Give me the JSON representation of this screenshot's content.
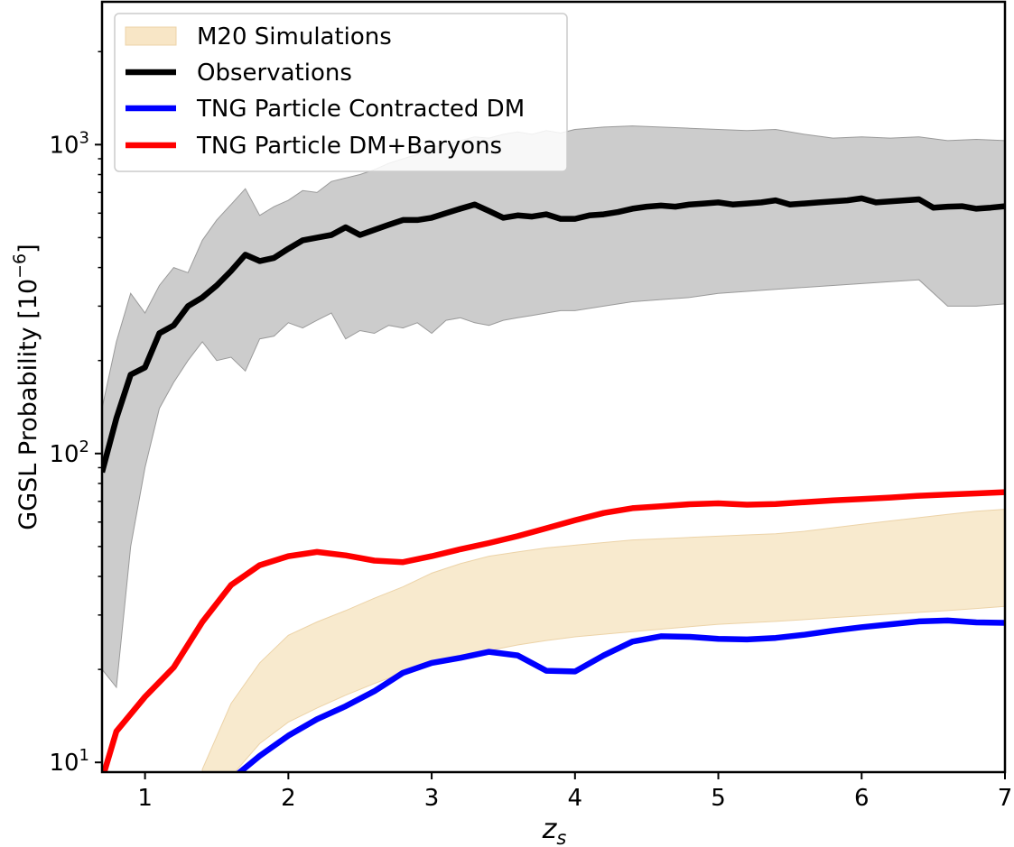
{
  "chart_data": {
    "type": "line",
    "xlabel_base": "z",
    "xlabel_sub": "s",
    "ylabel": "GGSL Probability [10",
    "ylabel_exp": "−6",
    "ylabel_close": "]",
    "yscale": "log",
    "xlim": [
      0.7,
      7.0
    ],
    "ylim": [
      9.3,
      2900
    ],
    "xticks": [
      1,
      2,
      3,
      4,
      5,
      6,
      7
    ],
    "xtick_labels": [
      "1",
      "2",
      "3",
      "4",
      "5",
      "6",
      "7"
    ],
    "yticks": [
      10,
      100,
      1000
    ],
    "ytick_labels": [
      {
        "base": "10",
        "exp": "1"
      },
      {
        "base": "10",
        "exp": "2"
      },
      {
        "base": "10",
        "exp": "3"
      }
    ],
    "legend": {
      "position": "top-left",
      "entries": [
        {
          "label": "M20 Simulations",
          "kind": "band",
          "color": "#f5deb3"
        },
        {
          "label": "Observations",
          "kind": "line",
          "color": "#000000"
        },
        {
          "label": "TNG Particle Contracted DM",
          "kind": "line",
          "color": "#0000ff"
        },
        {
          "label": "TNG Particle DM+Baryons",
          "kind": "line",
          "color": "#ff0000"
        }
      ]
    },
    "bands": [
      {
        "name": "M20 Simulations",
        "color": "#f5deb3",
        "x": [
          1.4,
          1.6,
          1.8,
          2.0,
          2.2,
          2.4,
          2.6,
          2.8,
          3.0,
          3.2,
          3.4,
          3.6,
          3.8,
          4.0,
          4.2,
          4.4,
          4.6,
          4.8,
          5.0,
          5.2,
          5.4,
          5.6,
          5.8,
          6.0,
          6.2,
          6.4,
          6.6,
          6.8,
          7.0
        ],
        "upper": [
          9.5,
          15.5,
          21.0,
          25.8,
          28.5,
          31.0,
          34.0,
          37.0,
          41.0,
          44.0,
          46.5,
          48.0,
          49.5,
          50.5,
          51.5,
          52.5,
          53.0,
          53.5,
          54.0,
          54.5,
          55.0,
          56.0,
          57.5,
          59.0,
          60.5,
          62.0,
          63.5,
          65.0,
          66.0
        ],
        "lower": [
          null,
          9.0,
          11.5,
          13.5,
          15.0,
          16.5,
          18.0,
          19.5,
          21.0,
          22.0,
          23.0,
          24.0,
          24.8,
          25.5,
          26.0,
          26.5,
          27.0,
          27.5,
          28.0,
          28.3,
          28.6,
          29.0,
          29.4,
          29.8,
          30.2,
          30.6,
          31.0,
          31.5,
          32.0
        ]
      },
      {
        "name": "Observations uncertainty",
        "color": "#bfbfbf",
        "x": [
          0.7,
          0.8,
          0.9,
          1.0,
          1.1,
          1.2,
          1.3,
          1.4,
          1.5,
          1.6,
          1.7,
          1.8,
          1.9,
          2.0,
          2.1,
          2.2,
          2.3,
          2.4,
          2.5,
          2.6,
          2.7,
          2.8,
          2.9,
          3.0,
          3.1,
          3.2,
          3.3,
          3.4,
          3.5,
          3.6,
          3.7,
          3.8,
          3.9,
          4.0,
          4.2,
          4.4,
          4.6,
          4.8,
          5.0,
          5.2,
          5.4,
          5.6,
          5.8,
          6.0,
          6.2,
          6.4,
          6.6,
          6.8,
          7.0
        ],
        "upper": [
          140,
          230,
          330,
          285,
          350,
          400,
          385,
          490,
          570,
          640,
          720,
          590,
          630,
          660,
          710,
          700,
          760,
          780,
          800,
          830,
          870,
          900,
          930,
          980,
          1000,
          1030,
          1060,
          1050,
          1080,
          1100,
          1080,
          1110,
          1090,
          1120,
          1140,
          1150,
          1140,
          1130,
          1120,
          1110,
          1120,
          1080,
          1050,
          1060,
          1050,
          1060,
          1030,
          1040,
          1030
        ],
        "lower": [
          20,
          17.5,
          50,
          90,
          140,
          170,
          200,
          230,
          200,
          205,
          185,
          235,
          240,
          265,
          255,
          270,
          285,
          235,
          250,
          245,
          260,
          255,
          265,
          245,
          270,
          275,
          265,
          260,
          270,
          275,
          280,
          285,
          290,
          290,
          300,
          310,
          315,
          320,
          330,
          335,
          340,
          345,
          350,
          355,
          360,
          365,
          300,
          300,
          305
        ]
      }
    ],
    "series": [
      {
        "name": "Observations",
        "color": "#000000",
        "x": [
          0.7,
          0.8,
          0.9,
          1.0,
          1.1,
          1.2,
          1.3,
          1.4,
          1.5,
          1.6,
          1.7,
          1.8,
          1.9,
          2.0,
          2.1,
          2.2,
          2.3,
          2.4,
          2.5,
          2.6,
          2.7,
          2.8,
          2.9,
          3.0,
          3.1,
          3.2,
          3.3,
          3.4,
          3.5,
          3.6,
          3.7,
          3.8,
          3.9,
          4.0,
          4.1,
          4.2,
          4.3,
          4.4,
          4.5,
          4.6,
          4.7,
          4.8,
          4.9,
          5.0,
          5.1,
          5.2,
          5.3,
          5.4,
          5.5,
          5.6,
          5.7,
          5.8,
          5.9,
          6.0,
          6.1,
          6.2,
          6.3,
          6.4,
          6.5,
          6.6,
          6.7,
          6.8,
          6.9,
          7.0
        ],
        "y": [
          87,
          130,
          180,
          190,
          245,
          260,
          300,
          320,
          350,
          390,
          440,
          420,
          430,
          460,
          490,
          500,
          510,
          540,
          510,
          530,
          550,
          570,
          570,
          580,
          600,
          620,
          640,
          610,
          580,
          590,
          585,
          595,
          575,
          575,
          590,
          595,
          605,
          620,
          630,
          635,
          630,
          640,
          645,
          650,
          640,
          645,
          650,
          660,
          640,
          645,
          650,
          655,
          660,
          670,
          650,
          655,
          660,
          665,
          625,
          630,
          632,
          620,
          625,
          632
        ]
      },
      {
        "name": "TNG Particle Contracted DM",
        "color": "#0000ff",
        "x": [
          1.65,
          1.8,
          2.0,
          2.2,
          2.4,
          2.6,
          2.8,
          3.0,
          3.2,
          3.4,
          3.6,
          3.8,
          4.0,
          4.2,
          4.4,
          4.6,
          4.8,
          5.0,
          5.2,
          5.4,
          5.6,
          5.8,
          6.0,
          6.2,
          6.4,
          6.6,
          6.8,
          7.0
        ],
        "y": [
          9.2,
          10.5,
          12.2,
          13.8,
          15.2,
          17.0,
          19.5,
          21.0,
          21.8,
          22.8,
          22.2,
          19.8,
          19.7,
          22.2,
          24.6,
          25.6,
          25.5,
          25.1,
          25.0,
          25.3,
          25.9,
          26.7,
          27.4,
          28.0,
          28.6,
          28.8,
          28.4,
          28.3
        ]
      },
      {
        "name": "TNG Particle DM+Baryons",
        "color": "#ff0000",
        "x": [
          0.7,
          0.8,
          1.0,
          1.2,
          1.4,
          1.6,
          1.8,
          2.0,
          2.2,
          2.4,
          2.6,
          2.8,
          3.0,
          3.2,
          3.4,
          3.6,
          3.8,
          4.0,
          4.2,
          4.4,
          4.6,
          4.8,
          5.0,
          5.2,
          5.4,
          5.6,
          5.8,
          6.0,
          6.2,
          6.4,
          6.6,
          6.8,
          7.0
        ],
        "y": [
          8.8,
          12.6,
          16.3,
          20.3,
          28.5,
          37.5,
          43.5,
          46.5,
          48.0,
          46.8,
          45.0,
          44.5,
          46.5,
          49.0,
          51.3,
          54.0,
          57.3,
          60.8,
          64.2,
          66.5,
          67.5,
          68.5,
          69.0,
          68.3,
          68.6,
          69.6,
          70.5,
          71.2,
          72.0,
          73.0,
          73.7,
          74.3,
          75.0
        ]
      }
    ]
  }
}
